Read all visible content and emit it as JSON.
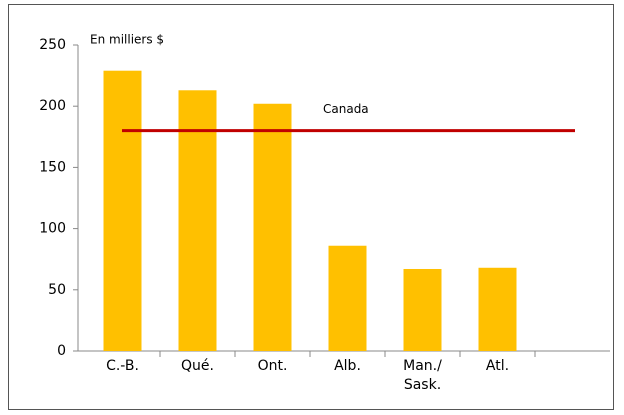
{
  "chart_data": {
    "type": "bar",
    "y_label": "En milliers $",
    "categories": [
      "C.-B.",
      "Qué.",
      "Ont.",
      "Alb.",
      "Man./\nSask.",
      "Atl.",
      null
    ],
    "values": [
      229,
      213,
      202,
      86,
      67,
      68,
      null
    ],
    "color": "#ffc000",
    "reference": {
      "name": "Canada",
      "value": 180,
      "color": "#c00000"
    },
    "ylim": [
      0,
      250
    ],
    "yticks": [
      0,
      50,
      100,
      150,
      200,
      250
    ],
    "grid": false
  }
}
